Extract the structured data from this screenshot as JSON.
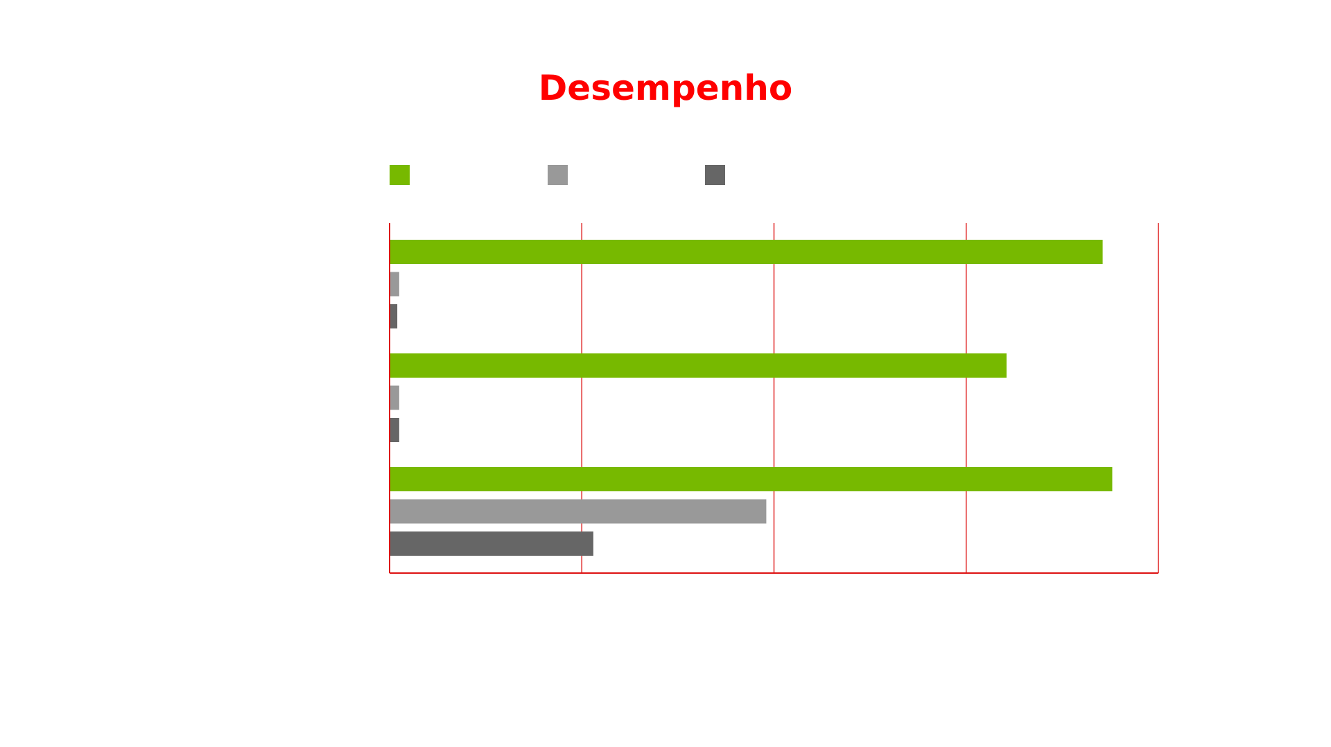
{
  "chart_data": {
    "type": "bar",
    "orientation": "horizontal",
    "title": "Desempenho",
    "xlabel": "",
    "ylabel": "",
    "xlim": [
      0,
      4
    ],
    "x_gridlines": [
      1,
      2,
      3,
      4
    ],
    "grid": true,
    "legend": {
      "placement": "top-left",
      "entries": [
        "",
        "",
        ""
      ]
    },
    "categories": [
      "",
      "",
      ""
    ],
    "series": [
      {
        "color": "#77b900",
        "values": [
          3.71,
          3.21,
          3.76
        ]
      },
      {
        "color": "#999999",
        "values": [
          0.05,
          0.05,
          1.96
        ]
      },
      {
        "color": "#666666",
        "values": [
          0.04,
          0.05,
          1.06
        ]
      }
    ]
  },
  "colors": {
    "title": "#ff0000",
    "axis": "#dd1111",
    "background": "#ffffff"
  }
}
